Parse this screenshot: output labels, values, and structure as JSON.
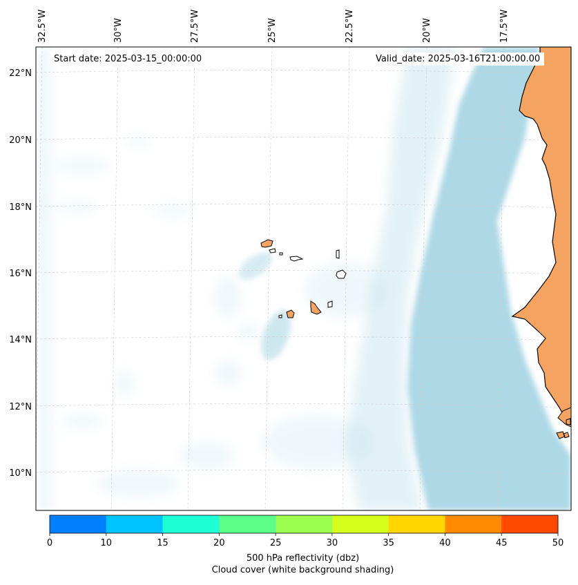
{
  "header": {
    "start_date": "Start date: 2025-03-15_00:00:00",
    "valid_date": "Valid_date: 2025-03-16T21:00:00.00"
  },
  "lon_labels": [
    "32.5°W",
    "30°W",
    "27.5°W",
    "25°W",
    "22.5°W",
    "20°W",
    "17.5°W"
  ],
  "lat_labels": [
    "22°N",
    "20°N",
    "18°N",
    "16°N",
    "14°N",
    "12°N",
    "10°N"
  ],
  "colorbar": {
    "ticks": [
      "0",
      "10",
      "15",
      "20",
      "25",
      "30",
      "35",
      "40",
      "45",
      "50"
    ],
    "colors": [
      "#0080ff",
      "#00c4ff",
      "#1effd6",
      "#5cff8a",
      "#9cff50",
      "#d6ff1e",
      "#ffd600",
      "#ff8a00",
      "#ff4a00"
    ],
    "label": "500 hPa reflectivity (dbz)",
    "sublabel": "Cloud cover (white background shading)"
  },
  "colors": {
    "land": "#f4a460",
    "cloud": "#add8e6",
    "grid": "#cccccc"
  }
}
